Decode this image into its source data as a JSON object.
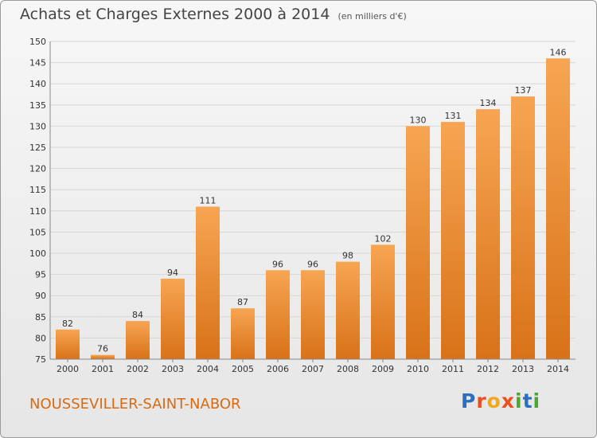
{
  "header": {
    "title": "Achats et Charges Externes 2000 à 2014",
    "unit": "(en milliers d'€)"
  },
  "footer": {
    "commune": "NOUSSEVILLER-SAINT-NABOR"
  },
  "logo": {
    "text": "Proxiti",
    "letters": [
      "P",
      "r",
      "o",
      "x",
      "i",
      "t",
      "i"
    ],
    "colors": [
      "#2a6fc0",
      "#e8501e",
      "#f0a81b",
      "#e8501e",
      "#4aa62c",
      "#2a6fc0",
      "#4aa62c"
    ]
  },
  "chart_data": {
    "type": "bar",
    "categories": [
      "2000",
      "2001",
      "2002",
      "2003",
      "2004",
      "2005",
      "2006",
      "2007",
      "2008",
      "2009",
      "2010",
      "2011",
      "2012",
      "2013",
      "2014"
    ],
    "values": [
      82,
      76,
      84,
      94,
      111,
      87,
      96,
      96,
      98,
      102,
      130,
      131,
      134,
      137,
      146
    ],
    "ylim": [
      75,
      150
    ],
    "yticks": [
      75,
      80,
      85,
      90,
      95,
      100,
      105,
      110,
      115,
      120,
      125,
      130,
      135,
      140,
      145,
      150
    ],
    "grid": true,
    "colors": {
      "bar_light": "#f7a552",
      "bar_dark": "#d87218",
      "grid": "#d6d6d6",
      "axis": "#888888"
    }
  }
}
